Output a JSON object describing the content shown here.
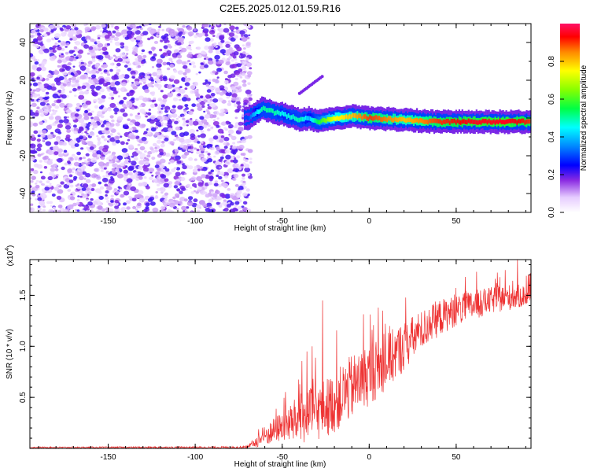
{
  "title": "C2E5.2025.012.01.59.R16",
  "chart_data": [
    {
      "type": "heatmap",
      "xlabel": "Height of straight line (km)",
      "ylabel": "Frequency (Hz)",
      "xlim": [
        -195,
        93
      ],
      "ylim": [
        -50,
        50
      ],
      "xticks": [
        -150,
        -100,
        -50,
        0,
        50
      ],
      "yticks": [
        -40,
        -20,
        0,
        20,
        40
      ],
      "colorbar": {
        "label": "Normalized spectral amplitude",
        "range": [
          0,
          1
        ],
        "ticks": [
          0.0,
          0.2,
          0.4,
          0.6,
          0.8
        ],
        "tick_labels": [
          "0.0",
          "0.2",
          "0.4",
          "0.6",
          "0.8"
        ]
      },
      "noise_region": {
        "x_range": [
          -195,
          -68
        ],
        "amplitude": 0.1
      },
      "signal_ridge": [
        {
          "x": -70,
          "y": 0,
          "amplitude": 0.3
        },
        {
          "x": -62,
          "y": 5,
          "amplitude": 0.5
        },
        {
          "x": -55,
          "y": 3,
          "amplitude": 0.5
        },
        {
          "x": -50,
          "y": 2,
          "amplitude": 0.45
        },
        {
          "x": -40,
          "y": -1,
          "amplitude": 0.5
        },
        {
          "x": -35,
          "y": 0,
          "amplitude": 0.4
        },
        {
          "x": -30,
          "y": -2,
          "amplitude": 0.55
        },
        {
          "x": -20,
          "y": 0,
          "amplitude": 0.75
        },
        {
          "x": -10,
          "y": 1,
          "amplitude": 0.8
        },
        {
          "x": 0,
          "y": 0,
          "amplitude": 0.9
        },
        {
          "x": 20,
          "y": -1,
          "amplitude": 0.8
        },
        {
          "x": 40,
          "y": -2,
          "amplitude": 0.9
        },
        {
          "x": 60,
          "y": -2,
          "amplitude": 0.95
        },
        {
          "x": 80,
          "y": -2,
          "amplitude": 0.95
        },
        {
          "x": 93,
          "y": -2,
          "amplitude": 0.9
        }
      ],
      "secondary_feature": {
        "x_range": [
          -40,
          -27
        ],
        "y_range": [
          13,
          22
        ]
      }
    },
    {
      "type": "line",
      "xlabel": "Height of straight line (km)",
      "ylabel": "SNR (10 * v/v)",
      "y_multiplier": "(x10",
      "y_multiplier_exp": "4",
      "xlim": [
        -195,
        93
      ],
      "ylim": [
        0,
        1.85
      ],
      "xticks": [
        -150,
        -100,
        -50,
        0,
        50
      ],
      "yticks": [
        0.5,
        1.0,
        1.5
      ],
      "ytick_labels": [
        "0.5",
        "1.0",
        "1.5"
      ],
      "series": [
        {
          "color": "#ee3333",
          "envelope": {
            "x": [
              -195,
              -70,
              -60,
              -50,
              -40,
              -30,
              -20,
              -10,
              0,
              10,
              20,
              30,
              40,
              50,
              60,
              70,
              80,
              93
            ],
            "mid": [
              0.01,
              0.01,
              0.12,
              0.22,
              0.28,
              0.35,
              0.45,
              0.6,
              0.72,
              0.85,
              1.0,
              1.15,
              1.28,
              1.35,
              1.4,
              1.45,
              1.48,
              1.5
            ],
            "amp": [
              0.005,
              0.01,
              0.1,
              0.15,
              0.25,
              0.28,
              0.3,
              0.32,
              0.3,
              0.28,
              0.25,
              0.2,
              0.18,
              0.15,
              0.15,
              0.13,
              0.13,
              0.1
            ]
          },
          "spikes": [
            {
              "x": -27,
              "y": 1.45
            },
            {
              "x": -36,
              "y": 0.95
            },
            {
              "x": -33,
              "y": 1.0
            },
            {
              "x": 5,
              "y": 1.38
            },
            {
              "x": 55,
              "y": 1.68
            },
            {
              "x": 85,
              "y": 1.85
            },
            {
              "x": 73,
              "y": 1.62
            }
          ]
        }
      ]
    }
  ]
}
